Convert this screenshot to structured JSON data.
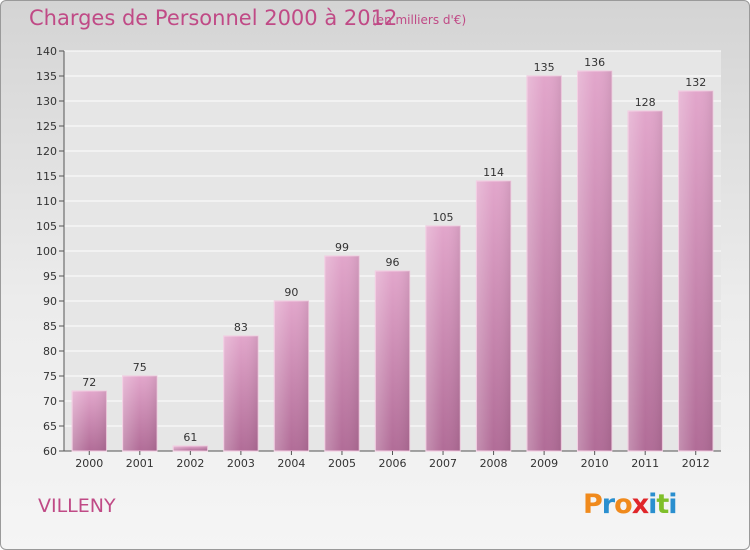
{
  "header": {
    "title": "Charges de Personnel 2000 à 2012",
    "subtitle": "(en milliers d'€)"
  },
  "footer": {
    "city": "VILLENY",
    "logo_text": "Proxiti"
  },
  "colors": {
    "title": "#c04a86",
    "bar_top": "#e2a6cb",
    "bar_bottom": "#b16c97",
    "logo_letters": [
      "#f08a1c",
      "#2a8fcf",
      "#f08a1c",
      "#e0262a",
      "#2a8fcf",
      "#7fbf2a",
      "#2a8fcf"
    ]
  },
  "chart_data": {
    "type": "bar",
    "categories": [
      "2000",
      "2001",
      "2002",
      "2003",
      "2004",
      "2005",
      "2006",
      "2007",
      "2008",
      "2009",
      "2010",
      "2011",
      "2012"
    ],
    "values": [
      72,
      75,
      61,
      83,
      90,
      99,
      96,
      105,
      114,
      135,
      136,
      128,
      132
    ],
    "title": "Charges de Personnel 2000 à 2012",
    "subtitle": "(en milliers d'€)",
    "ylim": [
      60,
      140
    ],
    "yticks": [
      60,
      65,
      70,
      75,
      80,
      85,
      90,
      95,
      100,
      105,
      110,
      115,
      120,
      125,
      130,
      135,
      140
    ],
    "grid": true,
    "data_labels": true
  }
}
